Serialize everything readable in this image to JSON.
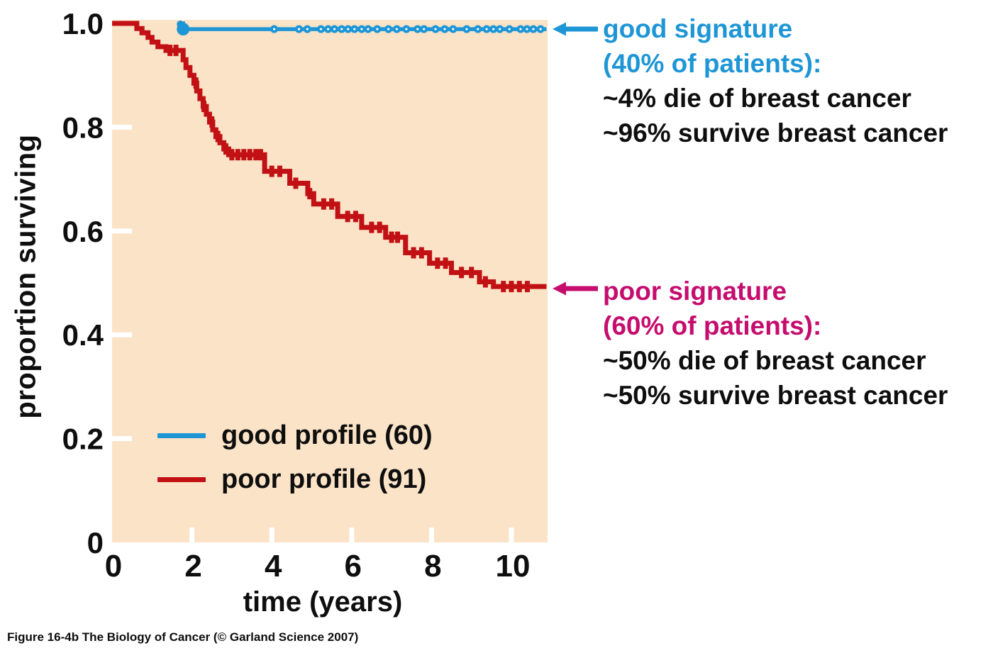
{
  "colors": {
    "good": "#1e96d6",
    "poor": "#c21114",
    "magenta": "#c50d6e",
    "plot_bg": "#fbe3c7",
    "ink": "#0e0e0e",
    "tick": "#ffffff"
  },
  "axis": {
    "ylabel": "proportion surviving",
    "xlabel": "time (years)"
  },
  "legend": {
    "items": [
      {
        "id": "good",
        "label": "good profile (60)"
      },
      {
        "id": "poor",
        "label": "poor profile (91)"
      }
    ]
  },
  "annotations": {
    "good": {
      "lines": [
        "good signature",
        "(40% of patients):",
        "~4% die of breast cancer",
        "~96% survive breast cancer"
      ]
    },
    "poor": {
      "lines": [
        "poor signature",
        "(60% of patients):",
        "~50% die of breast cancer",
        "~50% survive breast cancer"
      ]
    }
  },
  "caption": "Figure 16-4b  The Biology of Cancer (© Garland Science 2007)",
  "chart_data": {
    "type": "line",
    "subtype": "kaplan-meier-step",
    "xlabel": "time (years)",
    "ylabel": "proportion surviving",
    "xlim": [
      0,
      10.88
    ],
    "ylim": [
      0,
      1.0
    ],
    "grid": false,
    "legend_position": "inside-lower-left",
    "xticks": [
      {
        "v": 0,
        "label": "0"
      },
      {
        "v": 2,
        "label": "2"
      },
      {
        "v": 4,
        "label": "4"
      },
      {
        "v": 6,
        "label": "6"
      },
      {
        "v": 8,
        "label": "8"
      },
      {
        "v": 10,
        "label": "10"
      }
    ],
    "yticks": [
      {
        "v": 1.0,
        "label": "1.0"
      },
      {
        "v": 0.8,
        "label": "0.8"
      },
      {
        "v": 0.6,
        "label": "0.6"
      },
      {
        "v": 0.4,
        "label": "0.4"
      },
      {
        "v": 0.2,
        "label": "0.2"
      },
      {
        "v": 0,
        "label": "0"
      }
    ],
    "series": [
      {
        "name": "poor profile (91)",
        "color_key": "poor",
        "line_width": 7,
        "censor_style": "tick",
        "steps": [
          [
            0,
            1.0
          ],
          [
            0.62,
            0.99
          ],
          [
            0.75,
            0.982
          ],
          [
            0.9,
            0.973
          ],
          [
            1.0,
            0.964
          ],
          [
            1.15,
            0.955
          ],
          [
            1.35,
            0.948
          ],
          [
            1.78,
            0.93
          ],
          [
            1.85,
            0.915
          ],
          [
            1.95,
            0.9
          ],
          [
            2.05,
            0.885
          ],
          [
            2.12,
            0.87
          ],
          [
            2.2,
            0.855
          ],
          [
            2.28,
            0.84
          ],
          [
            2.36,
            0.825
          ],
          [
            2.44,
            0.81
          ],
          [
            2.52,
            0.795
          ],
          [
            2.6,
            0.782
          ],
          [
            2.7,
            0.77
          ],
          [
            2.8,
            0.758
          ],
          [
            2.92,
            0.747
          ],
          [
            3.82,
            0.715
          ],
          [
            4.45,
            0.692
          ],
          [
            4.9,
            0.672
          ],
          [
            5.05,
            0.652
          ],
          [
            5.65,
            0.628
          ],
          [
            6.25,
            0.607
          ],
          [
            6.85,
            0.588
          ],
          [
            7.35,
            0.558
          ],
          [
            7.95,
            0.538
          ],
          [
            8.5,
            0.52
          ],
          [
            9.2,
            0.502
          ],
          [
            9.55,
            0.493
          ],
          [
            10.88,
            0.493
          ]
        ],
        "censor_times": [
          1.45,
          1.6,
          2.1,
          2.3,
          2.5,
          2.65,
          2.85,
          3.0,
          3.15,
          3.3,
          3.45,
          3.6,
          3.72,
          4.0,
          4.2,
          4.6,
          4.95,
          5.3,
          5.5,
          5.9,
          6.1,
          6.5,
          6.7,
          7.0,
          7.15,
          7.55,
          7.75,
          8.15,
          8.35,
          8.75,
          9.0,
          9.35,
          9.8,
          10.0,
          10.2,
          10.4
        ]
      },
      {
        "name": "good profile (60)",
        "color_key": "good",
        "line_width": 5.5,
        "censor_style": "circle",
        "start_marker_t": 1.78,
        "steps": [
          [
            1.65,
            1.0
          ],
          [
            1.78,
            0.989
          ],
          [
            10.88,
            0.989
          ]
        ],
        "censor_times": [
          4.06,
          4.68,
          4.89,
          5.23,
          5.41,
          5.57,
          5.75,
          5.91,
          6.07,
          6.25,
          6.41,
          6.64,
          6.92,
          7.13,
          7.37,
          7.65,
          7.81,
          8.1,
          8.33,
          8.54,
          8.88,
          9.16,
          9.38,
          9.55,
          9.71,
          9.95,
          10.23,
          10.39,
          10.55,
          10.73
        ]
      }
    ],
    "callouts": [
      {
        "id": "good",
        "y_value": 0.989,
        "color_key": "good"
      },
      {
        "id": "poor",
        "y_value": 0.493,
        "color_key": "magenta"
      }
    ]
  }
}
